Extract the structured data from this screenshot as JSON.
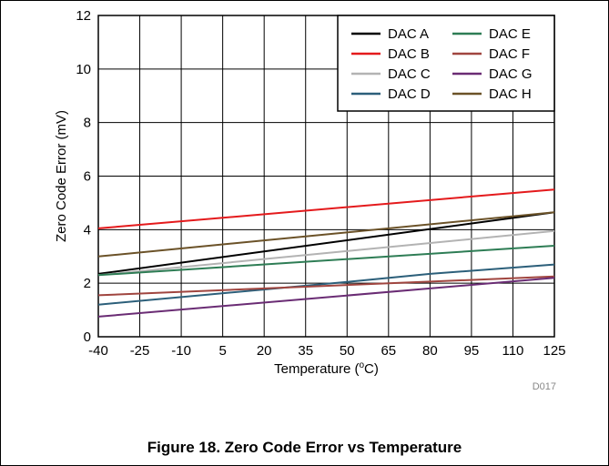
{
  "chart_data": {
    "type": "line",
    "xlabel_prefix": "Temperature (",
    "xlabel_sup": "o",
    "xlabel_suffix": "C)",
    "ylabel": "Zero Code Error (mV)",
    "x_ticks": [
      "-40",
      "-25",
      "-10",
      "5",
      "20",
      "35",
      "50",
      "65",
      "80",
      "95",
      "110",
      "125"
    ],
    "y_ticks": [
      "0",
      "2",
      "4",
      "6",
      "8",
      "10",
      "12"
    ],
    "xlim": [
      -40,
      125
    ],
    "ylim": [
      0,
      12
    ],
    "grid": true,
    "legend_position": "top-right",
    "legend_columns": 2,
    "code": "D017",
    "series": [
      {
        "name": "DAC A",
        "color": "#000000",
        "x": [
          -40,
          125
        ],
        "y": [
          2.35,
          4.65
        ]
      },
      {
        "name": "DAC B",
        "color": "#e41a1c",
        "x": [
          -40,
          125
        ],
        "y": [
          4.05,
          5.5
        ]
      },
      {
        "name": "DAC C",
        "color": "#b3b3b3",
        "x": [
          -40,
          125
        ],
        "y": [
          2.3,
          3.95
        ]
      },
      {
        "name": "DAC D",
        "color": "#2c5f7a",
        "x": [
          -40,
          50,
          80,
          125
        ],
        "y": [
          1.2,
          2.05,
          2.35,
          2.7
        ]
      },
      {
        "name": "DAC E",
        "color": "#2e7d55",
        "x": [
          -40,
          125
        ],
        "y": [
          2.3,
          3.4
        ]
      },
      {
        "name": "DAC F",
        "color": "#a0453f",
        "x": [
          -40,
          125
        ],
        "y": [
          1.55,
          2.25
        ]
      },
      {
        "name": "DAC G",
        "color": "#6a2c74",
        "x": [
          -40,
          125
        ],
        "y": [
          0.75,
          2.2
        ]
      },
      {
        "name": "DAC H",
        "color": "#6b5228",
        "x": [
          -40,
          125
        ],
        "y": [
          3.0,
          4.65
        ]
      }
    ]
  },
  "caption": "Figure 18. Zero Code Error vs Temperature"
}
